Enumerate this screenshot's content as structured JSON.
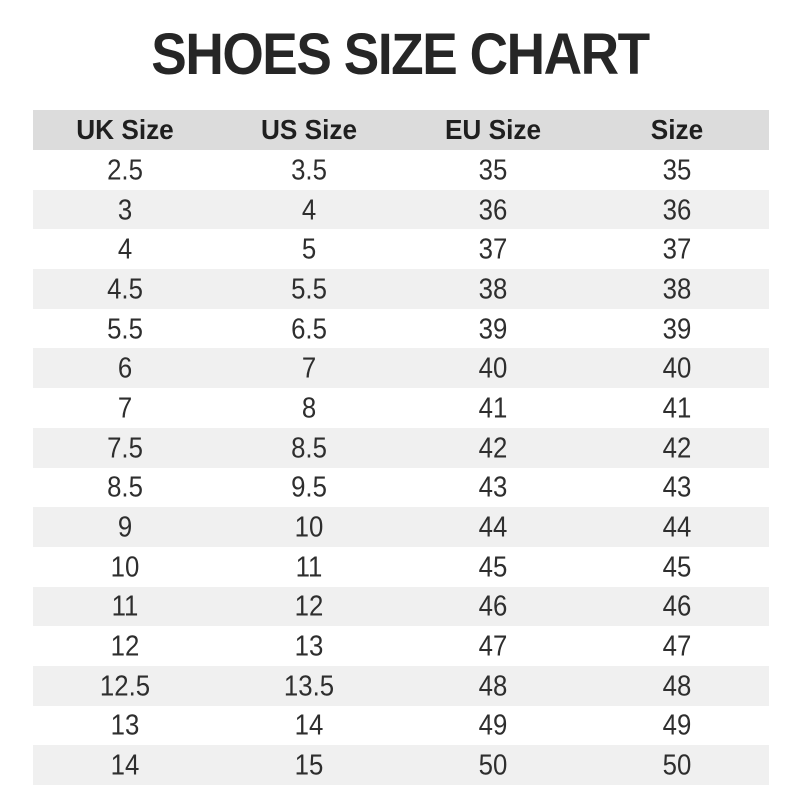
{
  "page": {
    "title": "SHOES SIZE CHART"
  },
  "colors": {
    "background": "#ffffff",
    "title_text": "#262626",
    "header_background": "#dcdcdc",
    "stripe_background": "#f0f0f0",
    "cell_text": "#2e2e2e"
  },
  "chart_data": {
    "type": "table",
    "title": "SHOES SIZE CHART",
    "columns": [
      "UK Size",
      "US Size",
      "EU Size",
      "Size"
    ],
    "rows": [
      [
        "2.5",
        "3.5",
        "35",
        "35"
      ],
      [
        "3",
        "4",
        "36",
        "36"
      ],
      [
        "4",
        "5",
        "37",
        "37"
      ],
      [
        "4.5",
        "5.5",
        "38",
        "38"
      ],
      [
        "5.5",
        "6.5",
        "39",
        "39"
      ],
      [
        "6",
        "7",
        "40",
        "40"
      ],
      [
        "7",
        "8",
        "41",
        "41"
      ],
      [
        "7.5",
        "8.5",
        "42",
        "42"
      ],
      [
        "8.5",
        "9.5",
        "43",
        "43"
      ],
      [
        "9",
        "10",
        "44",
        "44"
      ],
      [
        "10",
        "11",
        "45",
        "45"
      ],
      [
        "11",
        "12",
        "46",
        "46"
      ],
      [
        "12",
        "13",
        "47",
        "47"
      ],
      [
        "12.5",
        "13.5",
        "48",
        "48"
      ],
      [
        "13",
        "14",
        "49",
        "49"
      ],
      [
        "14",
        "15",
        "50",
        "50"
      ]
    ],
    "layout": {
      "striped": true,
      "stripe_pattern": "even rows shaded",
      "header_background": "#dcdcdc",
      "stripe_background": "#f0f0f0",
      "grid": false,
      "borders": false
    }
  }
}
